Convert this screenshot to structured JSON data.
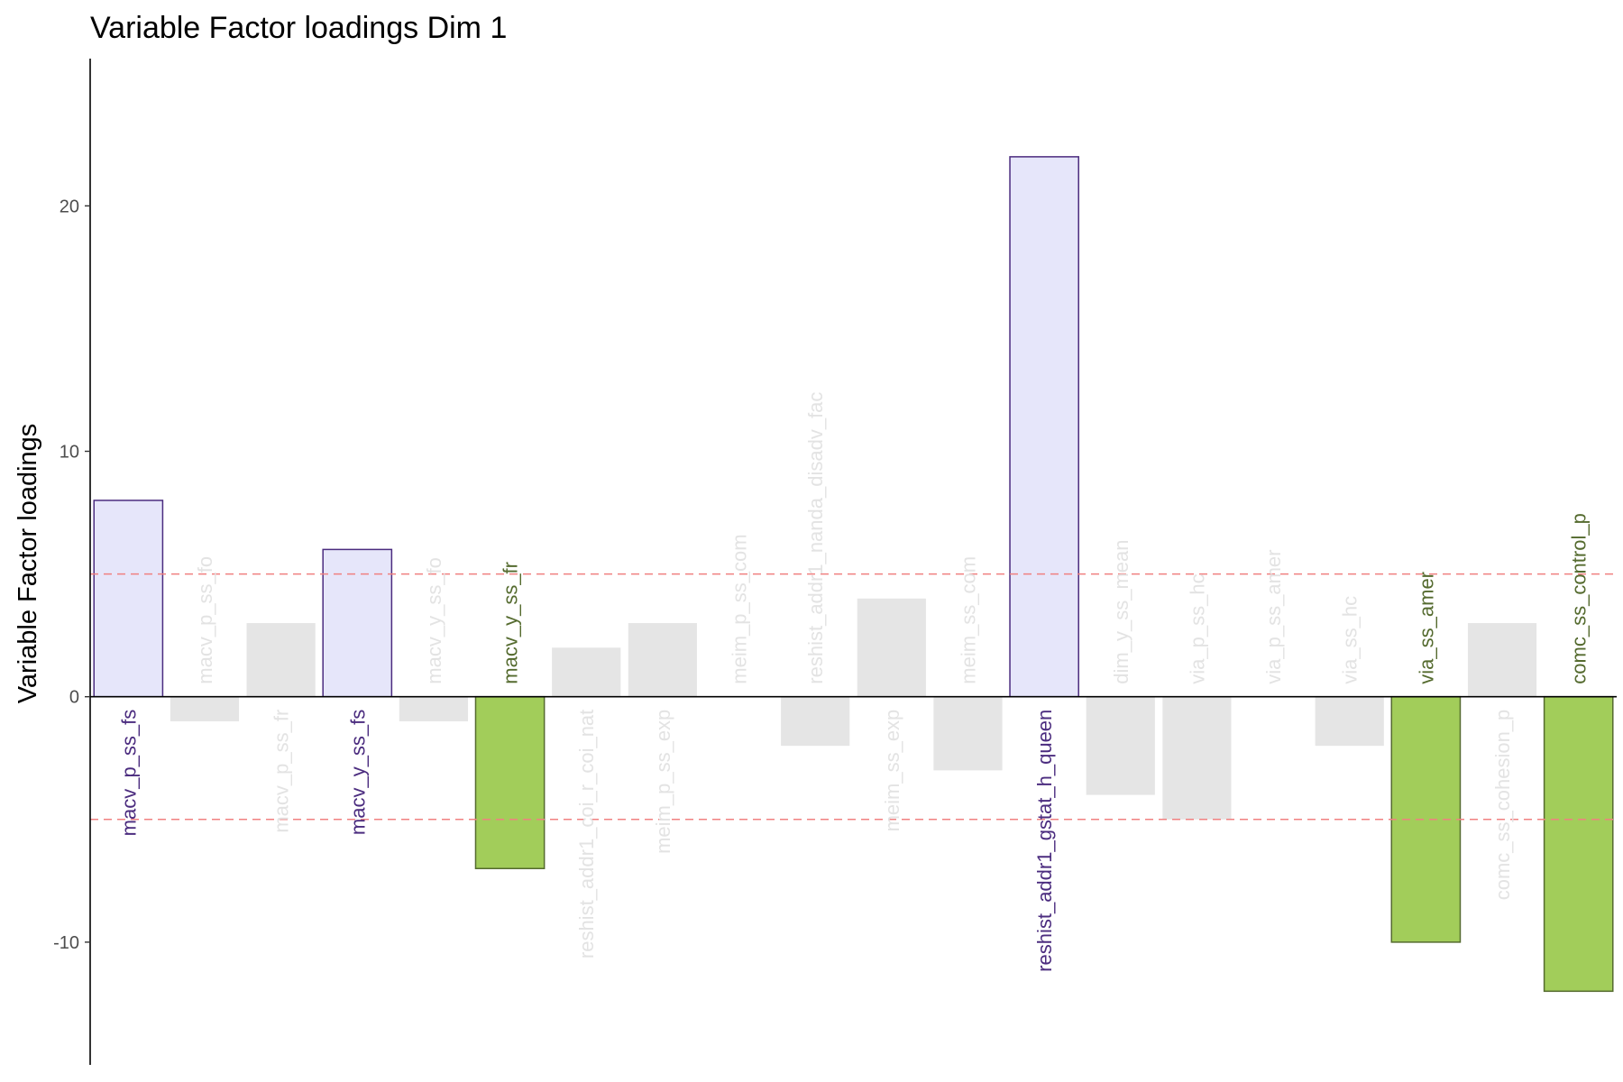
{
  "chart_data": {
    "type": "bar",
    "title": "Variable Factor loadings Dim 1",
    "xlabel": "",
    "ylabel": "Variable Factor loadings",
    "ylim": [
      -15,
      26
    ],
    "yticks": [
      -10,
      0,
      10,
      20
    ],
    "grid": false,
    "legend": "none",
    "thresholds": [
      5,
      -5
    ],
    "categories": [
      "macv_p_ss_fs",
      "macv_p_ss_fo",
      "macv_p_ss_fr",
      "macv_y_ss_fs",
      "macv_y_ss_fo",
      "macv_y_ss_fr",
      "reshist_addr1_coi_r_coi_nat",
      "meim_p_ss_exp",
      "meim_p_ss_com",
      "reshist_addr1_nanda_disadv_fac",
      "meim_ss_exp",
      "meim_ss_com",
      "reshist_addr1_gstat_h_queen",
      "dim_y_ss_mean",
      "via_p_ss_hc",
      "via_p_ss_amer",
      "via_ss_hc",
      "via_ss_amer",
      "comc_ss_cohesion_p",
      "comc_ss_control_p"
    ],
    "values": [
      8,
      -1,
      3,
      6,
      -1,
      -7,
      2,
      3,
      0,
      -2,
      4,
      -3,
      22,
      -4,
      -5,
      0,
      -2,
      -10,
      3,
      -12
    ],
    "groups": [
      "pos",
      "none",
      "none",
      "pos",
      "none",
      "neg",
      "none",
      "none",
      "none",
      "none",
      "none",
      "none",
      "pos",
      "none",
      "none",
      "none",
      "none",
      "neg",
      "none",
      "neg"
    ],
    "colors": {
      "pos_fill": "#e6e6fa",
      "pos_stroke": "#4b2c7f",
      "pos_text": "#4b2c7f",
      "neg_fill": "#a2cd5a",
      "neg_stroke": "#556b2f",
      "neg_text": "#556b2f",
      "none_fill": "#e5e5e5",
      "none_text": "#e3e3e3",
      "threshold": "#f08080",
      "axis": "#000000"
    }
  }
}
